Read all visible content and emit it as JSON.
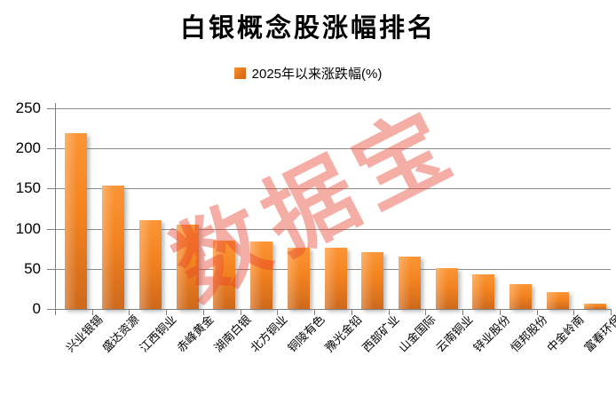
{
  "chart_data": {
    "type": "bar",
    "title": "白银概念股涨幅排名",
    "legend": "2025年以来涨跌幅(%)",
    "categories": [
      "兴业银锡",
      "盛达资源",
      "江西铜业",
      "赤峰黄金",
      "湖南白银",
      "北方铜业",
      "铜陵有色",
      "豫光金铅",
      "西部矿业",
      "山金国际",
      "云南铜业",
      "锌业股份",
      "恒邦股份",
      "中金岭南",
      "富春环保"
    ],
    "values": [
      219,
      154,
      111,
      105,
      85,
      84,
      76,
      76,
      71,
      65,
      51,
      43,
      31,
      21,
      7
    ],
    "xlabel": "",
    "ylabel": "",
    "ylim": [
      0,
      250
    ],
    "yticks": [
      0,
      50,
      100,
      150,
      200,
      250
    ],
    "grid": "horizontal",
    "legend_position": "top-center",
    "colors": {
      "bar_top": "#FB9535",
      "bar_bottom": "#CE691C",
      "gridline": "#8C8C8C",
      "axis": "#7F7F7F",
      "text": "#000000"
    }
  },
  "watermark": {
    "text": "数据宝",
    "color": "#E83E28"
  }
}
